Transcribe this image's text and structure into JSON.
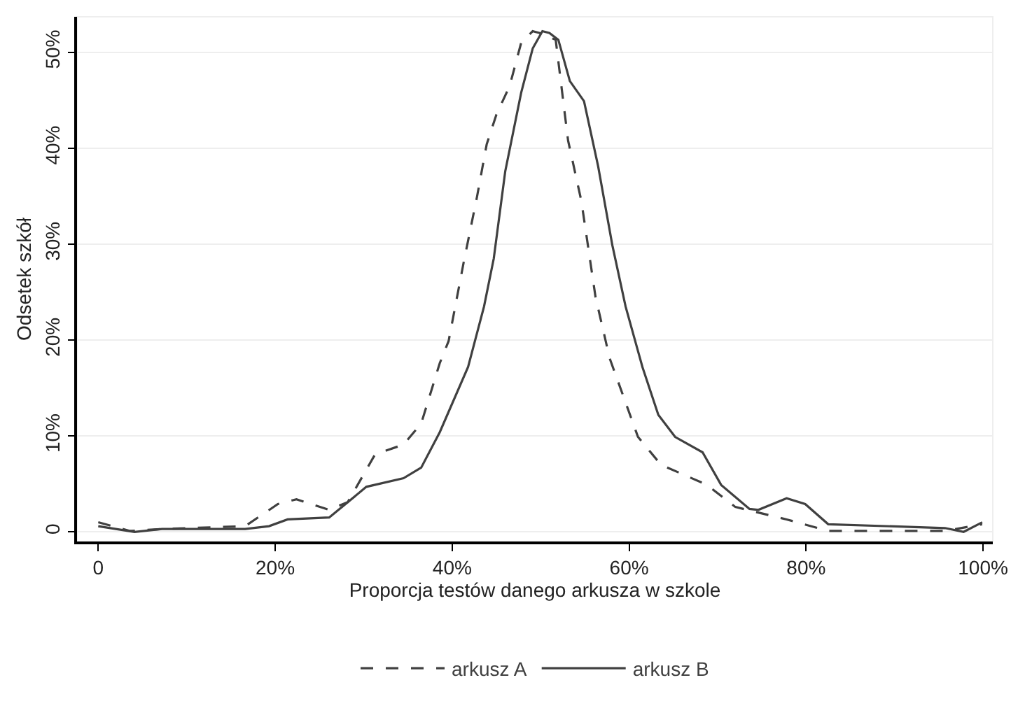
{
  "chart_data": {
    "type": "line",
    "xlabel": "Proporcja testów danego arkusza w szkole",
    "ylabel": "Odsetek szkół",
    "series": [
      {
        "name": "arkusz A",
        "color": "#404040",
        "line_style": "dashed",
        "x": [
          0,
          3.6,
          7.2,
          16.6,
          20.3,
          22.4,
          26.1,
          28.2,
          31.3,
          34.5,
          36.5,
          38.6,
          39.6,
          41.3,
          42.8,
          43.9,
          45,
          46.5,
          47.8,
          49.1,
          49.9,
          51.7,
          53.1,
          54.6,
          56.2,
          57.8,
          61,
          63.6,
          68.8,
          72,
          77.8,
          82.5,
          95.7,
          99.9
        ],
        "values": [
          1.0,
          0.1,
          0.3,
          0.6,
          2.9,
          3.4,
          2.3,
          3.1,
          8.1,
          9.1,
          11.3,
          17.6,
          19.9,
          28.1,
          34.9,
          40.4,
          43.5,
          46.5,
          51,
          52.2,
          52,
          51.3,
          40.8,
          34.5,
          24.5,
          18.1,
          9.9,
          7.0,
          4.9,
          2.6,
          1.3,
          0.1,
          0.1,
          0.8
        ]
      },
      {
        "name": "arkusz B",
        "color": "#404040",
        "line_style": "solid",
        "x": [
          0,
          4.1,
          7.2,
          16.6,
          19.3,
          21.4,
          26.1,
          30.3,
          34.5,
          36.5,
          38.6,
          41.8,
          43.6,
          44.7,
          46,
          47.8,
          49.1,
          50.2,
          51,
          52,
          53.3,
          54.9,
          56.5,
          58.1,
          59.6,
          61.5,
          63.3,
          65.2,
          68.3,
          70.4,
          73.6,
          74.6,
          77.8,
          79.9,
          82.5,
          95.7,
          97.8,
          99.9
        ],
        "values": [
          0.6,
          0,
          0.3,
          0.3,
          0.6,
          1.3,
          1.5,
          4.7,
          5.6,
          6.7,
          10.4,
          17.2,
          23.5,
          28.5,
          37.6,
          45.8,
          50.4,
          52.2,
          52,
          51.3,
          47,
          44.9,
          38.1,
          29.9,
          23.5,
          17.2,
          12.2,
          9.9,
          8.3,
          4.9,
          2.4,
          2.3,
          3.5,
          2.9,
          0.8,
          0.4,
          0,
          1.0
        ]
      }
    ],
    "xlim": [
      -2.4,
      101.1
    ],
    "ylim": [
      -1,
      53.7
    ],
    "xticks": [
      0,
      {
        "value": 20,
        "label": "20%"
      },
      {
        "value": 40,
        "label": "40%"
      },
      {
        "value": 60,
        "label": "60%"
      },
      {
        "value": 80,
        "label": "80%"
      },
      {
        "value": 100,
        "label": "100%"
      }
    ],
    "yticks": [
      0,
      {
        "value": 10,
        "label": "10%"
      },
      {
        "value": 20,
        "label": "20%"
      },
      {
        "value": 30,
        "label": "30%"
      },
      {
        "value": 40,
        "label": "40%"
      },
      {
        "value": 50,
        "label": "50%"
      }
    ],
    "grid": "y",
    "legend": "bottom",
    "marker": "none"
  }
}
